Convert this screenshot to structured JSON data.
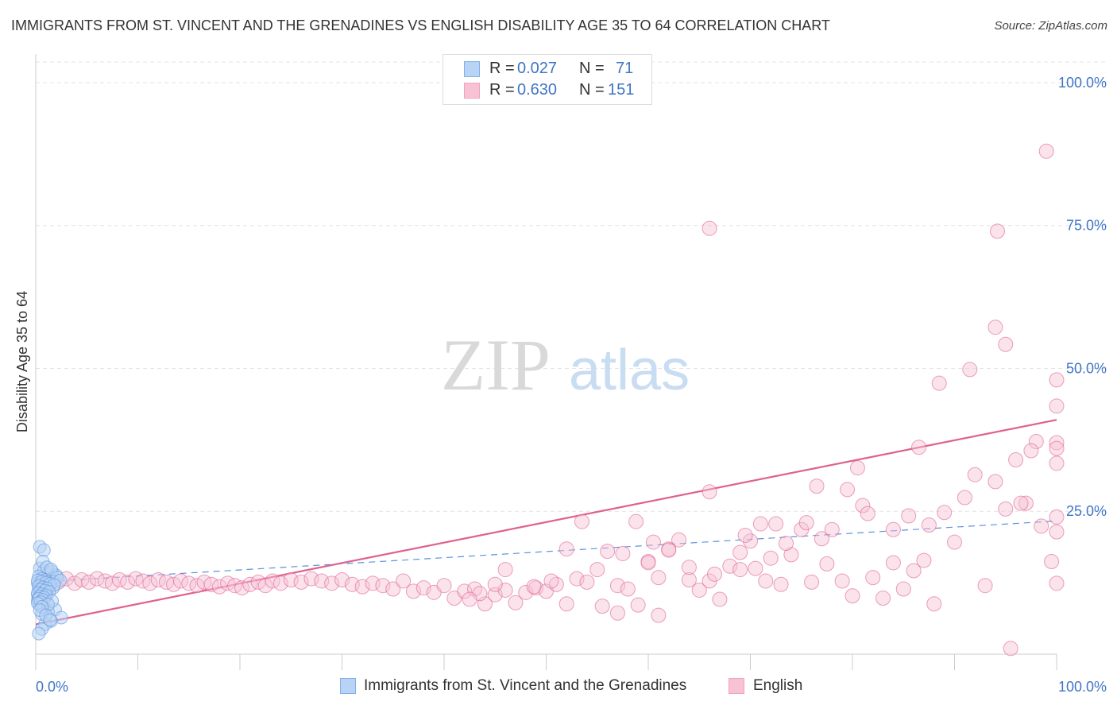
{
  "header": {
    "title": "IMMIGRANTS FROM ST. VINCENT AND THE GRENADINES VS ENGLISH DISABILITY AGE 35 TO 64 CORRELATION CHART",
    "source": "Source: ZipAtlas.com"
  },
  "watermark": {
    "zip": "ZIP",
    "atlas": "atlas"
  },
  "legend": {
    "rows": [
      {
        "r_label": "R =",
        "r_value": "0.027",
        "n_label": "N =",
        "n_value": "71",
        "color": "#7fb0ea"
      },
      {
        "r_label": "R =",
        "r_value": "0.630",
        "n_label": "N =",
        "n_value": "151",
        "color": "#f4a1bd"
      }
    ]
  },
  "colors": {
    "blue": "#5b92dd",
    "blue_fill": "#b8d3f4",
    "pink": "#e0608f",
    "pink_fill": "#f7c2d4",
    "axis_text": "#3f75c6",
    "grid": "#e3e3e3"
  },
  "chart_data": {
    "type": "scatter",
    "title": "IMMIGRANTS FROM ST. VINCENT AND THE GRENADINES VS ENGLISH DISABILITY AGE 35 TO 64 CORRELATION CHART",
    "xlabel": "",
    "ylabel": "Disability Age 35 to 64",
    "xlim": [
      0,
      100
    ],
    "ylim": [
      0,
      105
    ],
    "x_tick_labels": [
      "0.0%",
      "100.0%"
    ],
    "y_tick_labels": [
      "25.0%",
      "50.0%",
      "75.0%",
      "100.0%"
    ],
    "y_ticks": [
      25,
      50,
      75,
      100
    ],
    "grid": true,
    "legend_position": "top-center",
    "series": [
      {
        "name": "Immigrants from St. Vincent and the Grenadines",
        "color": "#5b92dd",
        "trend": {
          "x": [
            0,
            100
          ],
          "y": [
            12.6,
            23.3
          ],
          "style": "dashed"
        },
        "points": [
          [
            0.4,
            18.8
          ],
          [
            0.8,
            18.2
          ],
          [
            0.4,
            15.0
          ],
          [
            0.8,
            14.6
          ],
          [
            1.2,
            14.0
          ],
          [
            1.6,
            14.4
          ],
          [
            2.0,
            13.8
          ],
          [
            0.3,
            13.6
          ],
          [
            0.6,
            13.2
          ],
          [
            1.0,
            13.0
          ],
          [
            1.4,
            12.8
          ],
          [
            1.8,
            12.6
          ],
          [
            0.2,
            12.4
          ],
          [
            0.5,
            12.2
          ],
          [
            0.9,
            12.0
          ],
          [
            1.3,
            11.8
          ],
          [
            1.7,
            11.6
          ],
          [
            0.3,
            11.4
          ],
          [
            0.7,
            11.2
          ],
          [
            1.1,
            11.0
          ],
          [
            0.4,
            10.8
          ],
          [
            0.8,
            10.6
          ],
          [
            0.2,
            10.4
          ],
          [
            0.6,
            10.2
          ],
          [
            1.0,
            10.0
          ],
          [
            0.3,
            9.8
          ],
          [
            0.7,
            9.6
          ],
          [
            0.2,
            9.4
          ],
          [
            0.5,
            9.2
          ],
          [
            0.9,
            9.0
          ],
          [
            0.4,
            8.6
          ],
          [
            0.8,
            8.2
          ],
          [
            1.9,
            7.8
          ],
          [
            1.2,
            7.4
          ],
          [
            0.6,
            7.0
          ],
          [
            2.5,
            6.4
          ],
          [
            1.5,
            5.8
          ],
          [
            0.9,
            5.2
          ],
          [
            0.6,
            4.4
          ],
          [
            0.3,
            3.6
          ],
          [
            0.7,
            16.2
          ],
          [
            1.1,
            15.2
          ],
          [
            1.5,
            14.8
          ],
          [
            2.1,
            13.4
          ],
          [
            2.4,
            12.9
          ],
          [
            0.2,
            12.9
          ],
          [
            0.6,
            12.7
          ],
          [
            1.0,
            12.5
          ],
          [
            1.4,
            12.3
          ],
          [
            1.8,
            12.1
          ],
          [
            0.3,
            11.9
          ],
          [
            0.7,
            11.7
          ],
          [
            1.1,
            11.5
          ],
          [
            0.5,
            11.3
          ],
          [
            0.9,
            11.1
          ],
          [
            1.3,
            10.9
          ],
          [
            0.2,
            10.7
          ],
          [
            0.6,
            10.5
          ],
          [
            1.0,
            10.3
          ],
          [
            0.4,
            10.1
          ],
          [
            0.8,
            9.9
          ],
          [
            0.3,
            9.7
          ],
          [
            0.7,
            9.5
          ],
          [
            1.6,
            9.3
          ],
          [
            0.5,
            9.1
          ],
          [
            0.2,
            8.9
          ],
          [
            1.2,
            8.7
          ],
          [
            0.6,
            8.3
          ],
          [
            0.4,
            7.7
          ],
          [
            1.0,
            6.8
          ],
          [
            1.4,
            6.0
          ]
        ]
      },
      {
        "name": "English",
        "color": "#e0608f",
        "trend": {
          "x": [
            0,
            100
          ],
          "y": [
            5.2,
            41.0
          ],
          "style": "solid"
        },
        "points": [
          [
            0.8,
            12.8
          ],
          [
            1.5,
            13.0
          ],
          [
            2.2,
            12.6
          ],
          [
            3.0,
            13.2
          ],
          [
            3.8,
            12.4
          ],
          [
            4.5,
            13.0
          ],
          [
            5.2,
            12.6
          ],
          [
            6.0,
            13.2
          ],
          [
            6.8,
            12.8
          ],
          [
            7.5,
            12.4
          ],
          [
            8.2,
            13.0
          ],
          [
            9.0,
            12.6
          ],
          [
            9.8,
            13.2
          ],
          [
            10.5,
            12.8
          ],
          [
            11.2,
            12.4
          ],
          [
            12.0,
            13.0
          ],
          [
            12.8,
            12.6
          ],
          [
            13.5,
            12.2
          ],
          [
            14.2,
            12.8
          ],
          [
            15.0,
            12.4
          ],
          [
            15.8,
            12.0
          ],
          [
            16.5,
            12.6
          ],
          [
            17.2,
            12.2
          ],
          [
            18.0,
            11.8
          ],
          [
            18.8,
            12.4
          ],
          [
            19.5,
            12.0
          ],
          [
            20.2,
            11.6
          ],
          [
            21.0,
            12.2
          ],
          [
            21.8,
            12.6
          ],
          [
            22.5,
            12.0
          ],
          [
            23.2,
            12.8
          ],
          [
            24.0,
            12.4
          ],
          [
            25.0,
            13.0
          ],
          [
            26.0,
            12.6
          ],
          [
            27.0,
            13.2
          ],
          [
            28.0,
            12.8
          ],
          [
            29.0,
            12.4
          ],
          [
            30.0,
            13.0
          ],
          [
            31.0,
            12.2
          ],
          [
            32.0,
            11.8
          ],
          [
            33.0,
            12.4
          ],
          [
            34.0,
            12.0
          ],
          [
            35.0,
            11.4
          ],
          [
            36.0,
            12.8
          ],
          [
            37.0,
            11.0
          ],
          [
            38.0,
            11.6
          ],
          [
            39.0,
            10.8
          ],
          [
            40.0,
            12.0
          ],
          [
            41.0,
            9.8
          ],
          [
            42.0,
            11.0
          ],
          [
            43.0,
            11.4
          ],
          [
            44.0,
            8.8
          ],
          [
            45.0,
            10.4
          ],
          [
            46.0,
            11.2
          ],
          [
            47.0,
            9.0
          ],
          [
            48.0,
            10.8
          ],
          [
            49.0,
            11.6
          ],
          [
            50.0,
            11.0
          ],
          [
            51.0,
            12.2
          ],
          [
            52.0,
            8.8
          ],
          [
            53.0,
            13.2
          ],
          [
            54.0,
            12.6
          ],
          [
            55.0,
            14.8
          ],
          [
            56.0,
            18.0
          ],
          [
            57.0,
            12.0
          ],
          [
            58.0,
            11.4
          ],
          [
            59.0,
            8.6
          ],
          [
            60.0,
            16.2
          ],
          [
            61.0,
            13.4
          ],
          [
            62.0,
            18.4
          ],
          [
            63.0,
            20.0
          ],
          [
            64.0,
            13.0
          ],
          [
            65.0,
            11.2
          ],
          [
            66.0,
            12.8
          ],
          [
            67.0,
            9.6
          ],
          [
            68.0,
            15.4
          ],
          [
            69.0,
            14.8
          ],
          [
            70.0,
            19.8
          ],
          [
            71.0,
            22.8
          ],
          [
            72.0,
            16.8
          ],
          [
            73.0,
            12.2
          ],
          [
            74.0,
            17.4
          ],
          [
            75.0,
            21.8
          ],
          [
            76.0,
            12.6
          ],
          [
            77.0,
            20.2
          ],
          [
            78.0,
            21.8
          ],
          [
            79.0,
            12.8
          ],
          [
            80.0,
            10.2
          ],
          [
            81.0,
            26.0
          ],
          [
            82.0,
            13.4
          ],
          [
            83.0,
            9.8
          ],
          [
            84.0,
            16.0
          ],
          [
            85.0,
            11.4
          ],
          [
            86.0,
            14.6
          ],
          [
            87.0,
            16.4
          ],
          [
            88.0,
            8.8
          ],
          [
            89.0,
            24.8
          ],
          [
            90.0,
            19.6
          ],
          [
            91.0,
            27.4
          ],
          [
            92.0,
            31.4
          ],
          [
            93.0,
            12.0
          ],
          [
            94.0,
            30.2
          ],
          [
            95.0,
            25.4
          ],
          [
            96.0,
            34.0
          ],
          [
            97.0,
            26.4
          ],
          [
            98.0,
            37.2
          ],
          [
            99.0,
            88.0
          ],
          [
            53.5,
            23.2
          ],
          [
            52.0,
            18.4
          ],
          [
            58.8,
            23.2
          ],
          [
            46.0,
            14.8
          ],
          [
            48.8,
            11.8
          ],
          [
            57.5,
            17.6
          ],
          [
            60.5,
            19.6
          ],
          [
            66.0,
            28.4
          ],
          [
            70.5,
            15.0
          ],
          [
            69.5,
            20.8
          ],
          [
            72.5,
            22.8
          ],
          [
            76.5,
            29.4
          ],
          [
            79.5,
            28.8
          ],
          [
            80.5,
            32.6
          ],
          [
            84.0,
            21.8
          ],
          [
            86.5,
            36.2
          ],
          [
            88.5,
            47.4
          ],
          [
            91.5,
            49.8
          ],
          [
            94.0,
            57.2
          ],
          [
            95.0,
            54.2
          ],
          [
            97.5,
            35.6
          ],
          [
            100.0,
            37.0
          ],
          [
            94.2,
            74.0
          ],
          [
            66.0,
            74.5
          ],
          [
            100.0,
            43.4
          ],
          [
            100.0,
            33.4
          ],
          [
            100.0,
            36.0
          ],
          [
            100.0,
            21.4
          ],
          [
            100.0,
            24.0
          ],
          [
            100.0,
            48.0
          ],
          [
            100.0,
            12.4
          ],
          [
            60.0,
            16.0
          ],
          [
            62.0,
            18.2
          ],
          [
            64.0,
            15.2
          ],
          [
            66.5,
            14.0
          ],
          [
            69.0,
            17.8
          ],
          [
            71.5,
            12.8
          ],
          [
            73.5,
            19.4
          ],
          [
            75.5,
            23.0
          ],
          [
            77.5,
            15.8
          ],
          [
            81.5,
            24.6
          ],
          [
            85.5,
            24.2
          ],
          [
            87.5,
            22.6
          ],
          [
            96.5,
            26.4
          ],
          [
            98.5,
            22.4
          ],
          [
            99.5,
            16.2
          ],
          [
            43.5,
            10.6
          ],
          [
            42.5,
            9.6
          ],
          [
            45.0,
            12.2
          ],
          [
            50.5,
            12.8
          ],
          [
            55.5,
            8.4
          ],
          [
            57.0,
            7.2
          ],
          [
            61.0,
            6.8
          ],
          [
            95.5,
            1.0
          ]
        ]
      }
    ]
  }
}
